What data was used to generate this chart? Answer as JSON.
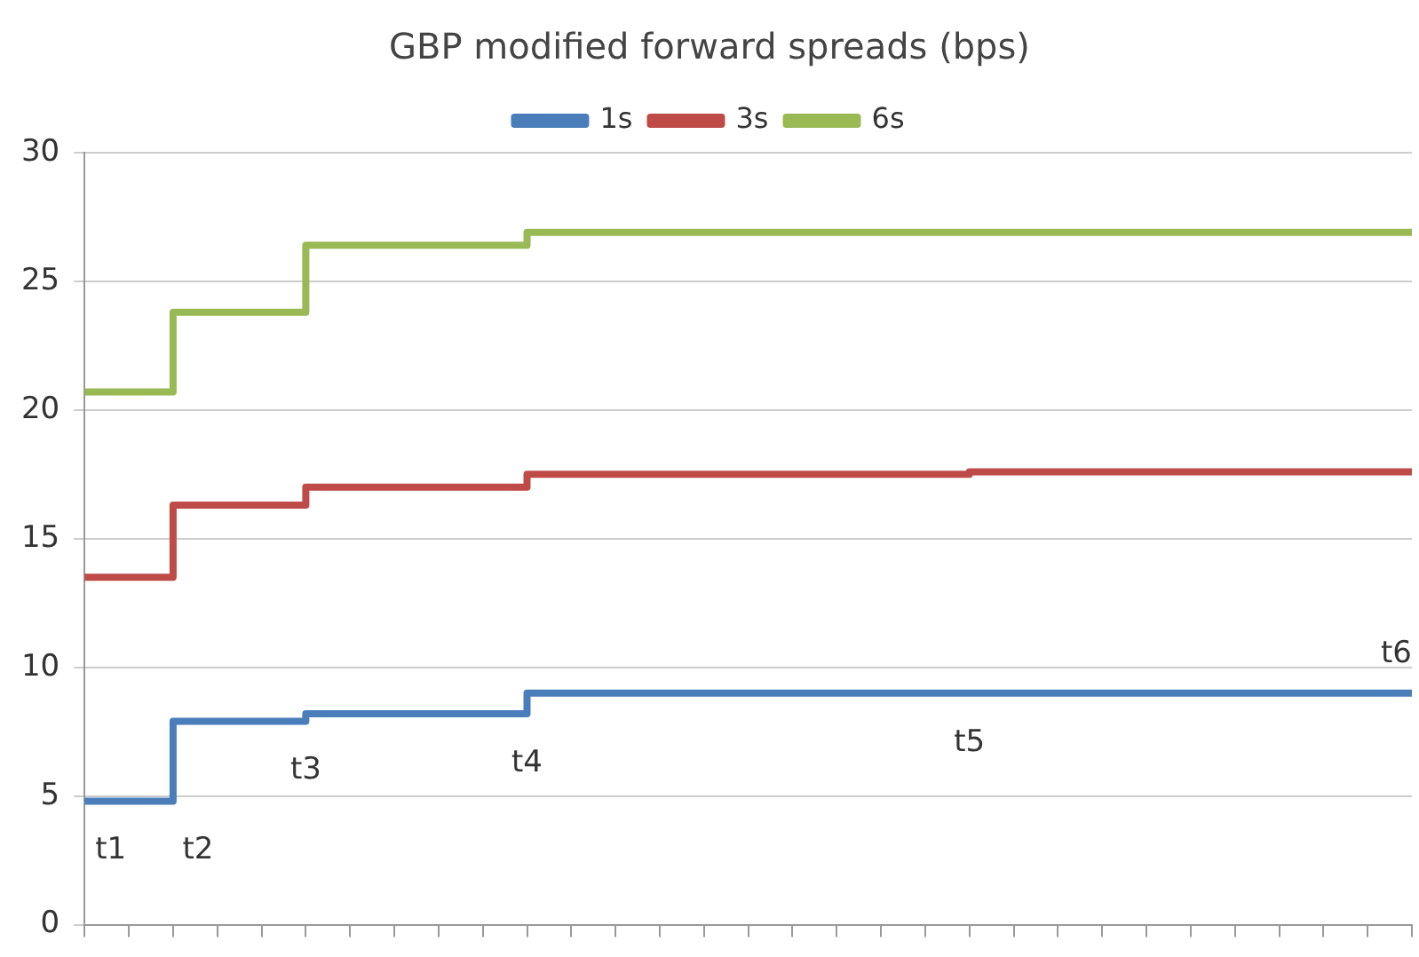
{
  "chart_data": {
    "type": "step",
    "title": "GBP modified forward spreads (bps)",
    "categories": [
      null,
      null,
      null,
      null,
      null,
      null,
      null,
      null,
      null,
      null,
      null,
      null,
      null,
      null,
      null,
      null,
      null,
      null,
      null,
      null,
      null,
      null,
      null,
      null,
      null,
      null,
      null,
      null,
      null,
      null,
      null
    ],
    "ylim": [
      0,
      30
    ],
    "yticks": [
      0,
      5,
      10,
      15,
      20,
      25,
      30
    ],
    "tick_labels": "y",
    "grid": "y",
    "legend": "top",
    "line_style": "solid",
    "series": [
      {
        "name": "1s",
        "color": "#4a7ebb",
        "values": [
          4.8,
          4.8,
          7.9,
          7.9,
          7.9,
          8.2,
          8.2,
          8.2,
          8.2,
          8.2,
          9.0,
          9.0,
          9.0,
          9.0,
          9.0,
          9.0,
          9.0,
          9.0,
          9.0,
          9.0,
          9.0,
          9.0,
          9.0,
          9.0,
          9.0,
          9.0,
          9.0,
          9.0,
          9.0,
          9.0,
          9.0
        ]
      },
      {
        "name": "3s",
        "color": "#be4b48",
        "values": [
          13.5,
          13.5,
          16.3,
          16.3,
          16.3,
          17.0,
          17.0,
          17.0,
          17.0,
          17.0,
          17.5,
          17.5,
          17.5,
          17.5,
          17.5,
          17.5,
          17.5,
          17.5,
          17.5,
          17.5,
          17.6,
          17.6,
          17.6,
          17.6,
          17.6,
          17.6,
          17.6,
          17.6,
          17.6,
          17.6,
          17.6
        ]
      },
      {
        "name": "6s",
        "color": "#98b954",
        "values": [
          20.7,
          20.7,
          23.8,
          23.8,
          23.8,
          26.4,
          26.4,
          26.4,
          26.4,
          26.4,
          26.9,
          26.9,
          26.9,
          26.9,
          26.9,
          26.9,
          26.9,
          26.9,
          26.9,
          26.9,
          26.9,
          26.9,
          26.9,
          26.9,
          26.9,
          26.9,
          26.9,
          26.9,
          26.9,
          26.9,
          26.9
        ]
      }
    ],
    "annotations": [
      "t1",
      "t2",
      "t3",
      "t4",
      "t5",
      "t6"
    ]
  }
}
